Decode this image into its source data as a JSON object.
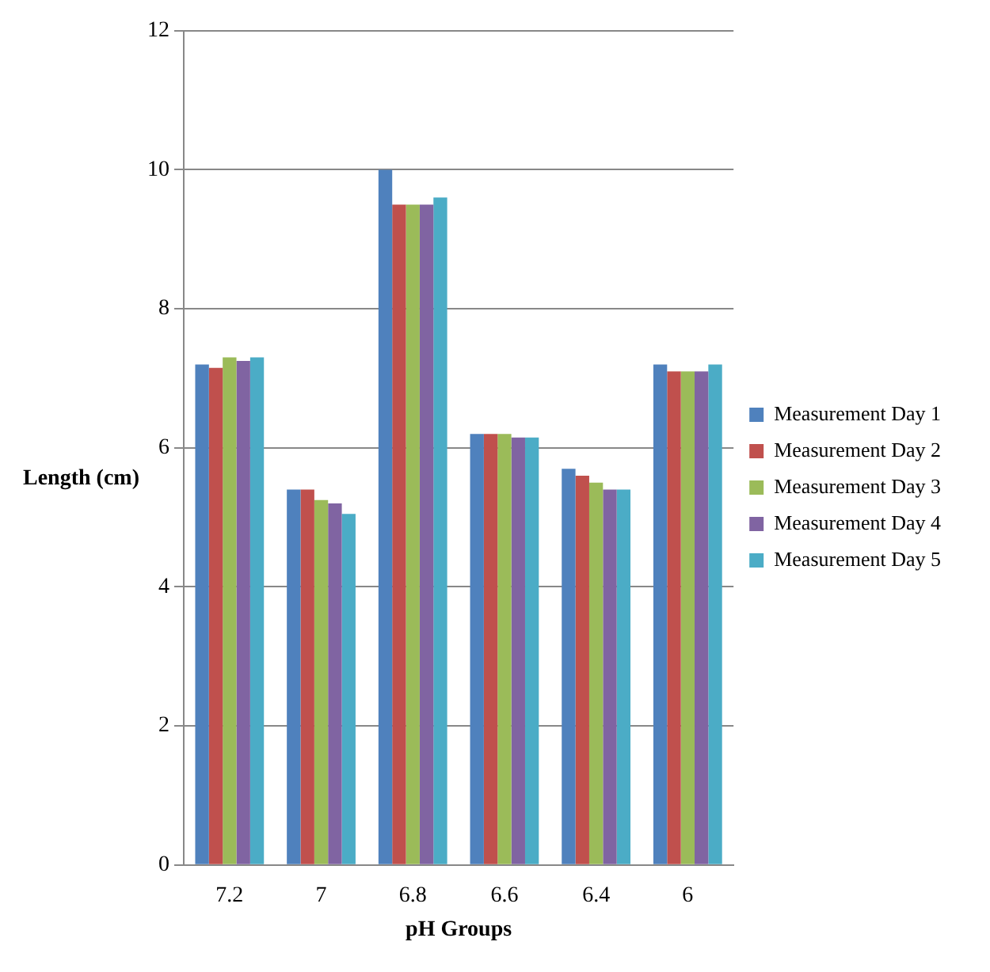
{
  "chart_data": {
    "type": "bar",
    "xlabel": "pH Groups",
    "ylabel": "Length (cm)",
    "categories": [
      "7.2",
      "7",
      "6.8",
      "6.6",
      "6.4",
      "6"
    ],
    "series": [
      {
        "name": "Measurement Day 1",
        "color": "#4f81bd",
        "values": [
          7.2,
          5.4,
          10,
          6.2,
          5.7,
          7.2
        ]
      },
      {
        "name": "Measurement Day 2",
        "color": "#c0504d",
        "values": [
          7.15,
          5.4,
          9.5,
          6.2,
          5.6,
          7.1
        ]
      },
      {
        "name": "Measurement Day 3",
        "color": "#9bbb59",
        "values": [
          7.3,
          5.25,
          9.5,
          6.2,
          5.5,
          7.1
        ]
      },
      {
        "name": "Measurement Day 4",
        "color": "#8064a2",
        "values": [
          7.25,
          5.2,
          9.5,
          6.15,
          5.4,
          7.1
        ]
      },
      {
        "name": "Measurement Day 5",
        "color": "#4bacc6",
        "values": [
          7.3,
          5.05,
          9.6,
          6.15,
          5.4,
          7.2
        ]
      }
    ],
    "ylim": [
      0,
      12
    ],
    "yticks": [
      0,
      2,
      4,
      6,
      8,
      10,
      12
    ],
    "grid": "y",
    "legend": "right"
  }
}
